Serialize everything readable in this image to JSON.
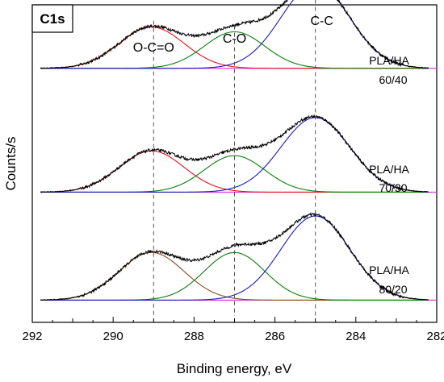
{
  "chart_data": {
    "type": "line",
    "panel_label": "C1s",
    "xlabel": "Binding energy, eV",
    "ylabel": "Counts/s",
    "xlim": [
      292,
      282
    ],
    "x_reversed": true,
    "x_ticks": [
      292,
      290,
      288,
      286,
      284,
      282
    ],
    "x_tick_labels": [
      "292",
      "290",
      "288",
      "286",
      "284",
      "282"
    ],
    "y_ticks_labeled": false,
    "grid": false,
    "peak_reference_lines": [
      {
        "label": "O-C=O",
        "x": 289.0
      },
      {
        "label": "C-O",
        "x": 287.0
      },
      {
        "label": "C-C",
        "x": 285.0
      }
    ],
    "stack_offsets": [
      0.8,
      0.41,
      0.07
    ],
    "series": [
      {
        "sample": [
          "PLA/HA",
          "60/40"
        ],
        "peaks": [
          {
            "center": 289.05,
            "sigma": 0.8,
            "height": 0.13,
            "color": "#e8101a"
          },
          {
            "center": 287.0,
            "sigma": 0.75,
            "height": 0.115,
            "color": "#0a7d0a"
          },
          {
            "center": 285.0,
            "sigma": 0.85,
            "height": 0.265,
            "color": "#1a1ab4"
          }
        ]
      },
      {
        "sample": [
          "PLA/HA",
          "70/30"
        ],
        "peaks": [
          {
            "center": 289.05,
            "sigma": 0.8,
            "height": 0.13,
            "color": "#e8101a"
          },
          {
            "center": 287.0,
            "sigma": 0.75,
            "height": 0.115,
            "color": "#0a7d0a"
          },
          {
            "center": 285.0,
            "sigma": 0.85,
            "height": 0.235,
            "color": "#1a1ab4"
          }
        ]
      },
      {
        "sample": [
          "PLA/HA",
          "80/20"
        ],
        "peaks": [
          {
            "center": 289.05,
            "sigma": 0.8,
            "height": 0.15,
            "color": "#8b4a22"
          },
          {
            "center": 287.0,
            "sigma": 0.75,
            "height": 0.15,
            "color": "#0a7d0a"
          },
          {
            "center": 285.0,
            "sigma": 0.85,
            "height": 0.265,
            "color": "#1a1ab4"
          }
        ]
      }
    ],
    "baseline_color": "#d92cd9",
    "experimental_color": "#000000"
  }
}
